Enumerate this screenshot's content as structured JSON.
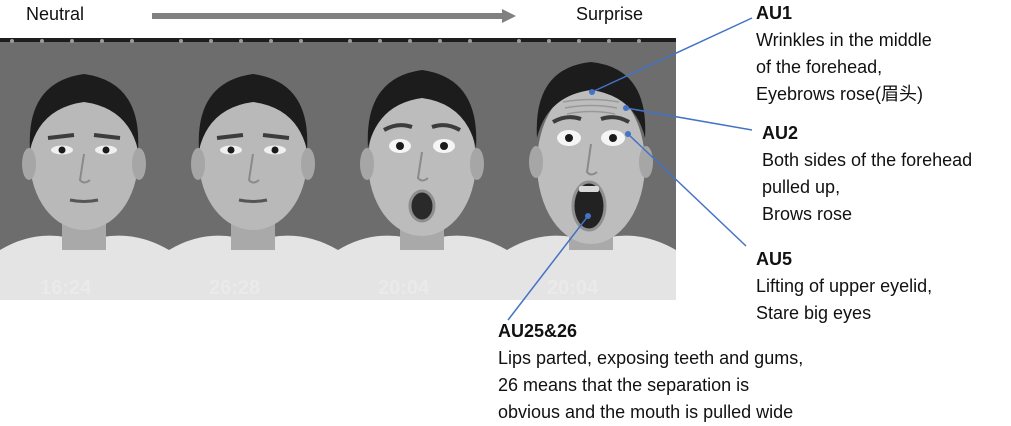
{
  "labels": {
    "start": "Neutral",
    "end": "Surprise"
  },
  "frames": [
    {
      "expression": "neutral"
    },
    {
      "expression": "neutral"
    },
    {
      "expression": "surprise"
    },
    {
      "expression": "surprise"
    }
  ],
  "annotations": [
    {
      "id": "au1",
      "title": "AU1",
      "lines": [
        "Wrinkles in the middle",
        "of the forehead,",
        "Eyebrows rose(眉头)"
      ]
    },
    {
      "id": "au2",
      "title": "AU2",
      "lines": [
        "Both sides of the forehead",
        "pulled up,",
        "Brows rose"
      ]
    },
    {
      "id": "au5",
      "title": "AU5",
      "lines": [
        "Lifting of upper eyelid,",
        "Stare big eyes"
      ]
    },
    {
      "id": "au25_26",
      "title": "AU25&26",
      "lines": [
        "Lips parted, exposing teeth and gums,",
        "26 means that the separation is",
        "obvious and the mouth is pulled wide"
      ]
    }
  ],
  "colors": {
    "arrow": "#808080",
    "leader": "#4472c4",
    "photo_bg": "#6b6b6b"
  }
}
